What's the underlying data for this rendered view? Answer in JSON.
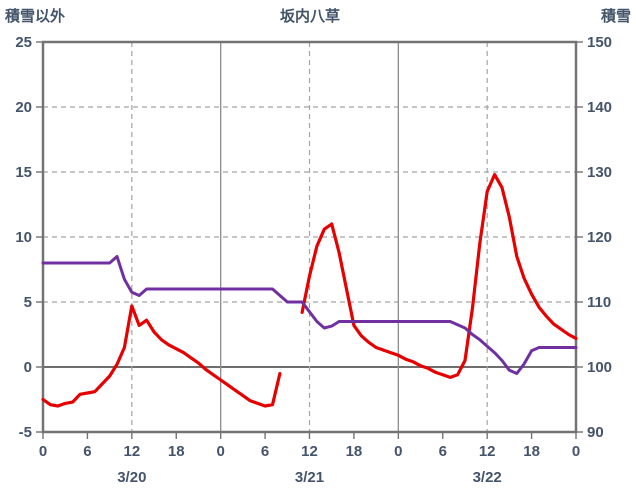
{
  "titles": {
    "left": "積雪以外",
    "center": "坂内八草",
    "right": "積雪"
  },
  "chart_data": {
    "type": "line",
    "title": "坂内八草",
    "left_axis_title": "積雪以外",
    "right_axis_title": "積雪",
    "hours_total": 72,
    "x_tick_interval": 6,
    "x_tick_labels": [
      "0",
      "6",
      "12",
      "18",
      "0",
      "6",
      "12",
      "18",
      "0",
      "6",
      "12",
      "18",
      "0"
    ],
    "day_labels": [
      {
        "label": "3/20",
        "hour": 12
      },
      {
        "label": "3/21",
        "hour": 36
      },
      {
        "label": "3/22",
        "hour": 60
      }
    ],
    "left_axis": {
      "min": -5,
      "max": 25,
      "step": 5,
      "ticks": [
        -5,
        0,
        5,
        10,
        15,
        20,
        25
      ]
    },
    "right_axis": {
      "min": 90,
      "max": 150,
      "step": 10,
      "ticks": [
        90,
        100,
        110,
        120,
        130,
        140,
        150
      ]
    },
    "vlines": {
      "solid_hours": [
        24,
        48
      ],
      "dashed_hours": [
        12,
        36,
        60
      ]
    },
    "grid": {
      "horizontal_dashed": true,
      "zero_line_solid": true
    },
    "colors": {
      "red_series": "#e60000",
      "purple_series": "#7030a0",
      "text": "#44546A",
      "grid": "#a3a3a3",
      "solid_vline": "#8c8c8c",
      "border": "#737373",
      "zero_line": "#595959"
    },
    "series": [
      {
        "id": "other-than-snow",
        "name": "積雪以外",
        "axis": "left",
        "color": "#e60000",
        "width": 3.2,
        "values": [
          -2.5,
          -2.9,
          -3.0,
          -2.8,
          -2.7,
          -2.1,
          -2.0,
          -1.9,
          -1.3,
          -0.7,
          0.2,
          1.5,
          4.7,
          3.2,
          3.6,
          2.7,
          2.1,
          1.7,
          1.4,
          1.1,
          0.7,
          0.3,
          -0.2,
          -0.6,
          -1.0,
          -1.4,
          -1.8,
          -2.2,
          -2.6,
          -2.8,
          -3.0,
          -2.9,
          -0.5,
          null,
          null,
          4.2,
          7.0,
          9.3,
          10.6,
          11.0,
          8.8,
          6.0,
          3.2,
          2.4,
          1.9,
          1.5,
          1.3,
          1.1,
          0.9,
          0.6,
          0.4,
          0.1,
          -0.1,
          -0.4,
          -0.6,
          -0.8,
          -0.6,
          0.5,
          4.5,
          9.5,
          13.5,
          14.8,
          13.8,
          11.5,
          8.5,
          6.8,
          5.6,
          4.6,
          3.9,
          3.3,
          2.9,
          2.5,
          2.2
        ]
      },
      {
        "id": "snow-depth",
        "name": "積雪",
        "axis": "right",
        "color": "#7030a0",
        "width": 3,
        "values": [
          116,
          116,
          116,
          116,
          116,
          116,
          116,
          116,
          116,
          116,
          117,
          113.5,
          111.5,
          111,
          112,
          112,
          112,
          112,
          112,
          112,
          112,
          112,
          112,
          112,
          112,
          112,
          112,
          112,
          112,
          112,
          112,
          112,
          111,
          110,
          110,
          110,
          108.5,
          107,
          106,
          106.3,
          107,
          107,
          107,
          107,
          107,
          107,
          107,
          107,
          107,
          107,
          107,
          107,
          107,
          107,
          107,
          107,
          106.5,
          106,
          105,
          104.2,
          103.2,
          102.2,
          101,
          99.5,
          99,
          100.5,
          102.5,
          103,
          103,
          103,
          103,
          103,
          103
        ]
      }
    ]
  }
}
